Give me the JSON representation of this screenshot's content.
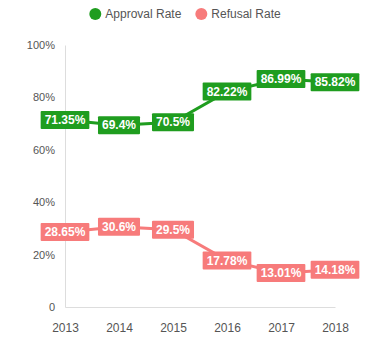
{
  "chart_data": {
    "type": "line",
    "categories": [
      "2013",
      "2014",
      "2015",
      "2016",
      "2017",
      "2018"
    ],
    "series": [
      {
        "name": "Approval Rate",
        "color": "#1f9d1f",
        "values": [
          71.35,
          69.4,
          70.5,
          82.22,
          86.99,
          85.82
        ],
        "value_labels": [
          "71.35%",
          "69.4%",
          "70.5%",
          "82.22%",
          "86.99%",
          "85.82%"
        ]
      },
      {
        "name": "Refusal Rate",
        "color": "#f77b7b",
        "values": [
          28.65,
          30.6,
          29.5,
          17.78,
          13.01,
          14.18
        ],
        "value_labels": [
          "28.65%",
          "30.6%",
          "29.5%",
          "17.78%",
          "13.01%",
          "14.18%"
        ]
      }
    ],
    "ylim": [
      0,
      100
    ],
    "yticks": [
      0,
      {
        "value": 20,
        "label": "20%"
      },
      {
        "value": 40,
        "label": "40%"
      },
      {
        "value": 60,
        "label": "60%"
      },
      {
        "value": 80,
        "label": "80%"
      },
      {
        "value": 100,
        "label": "100%"
      }
    ],
    "grid": false,
    "legend": "top",
    "data_labels": true
  }
}
